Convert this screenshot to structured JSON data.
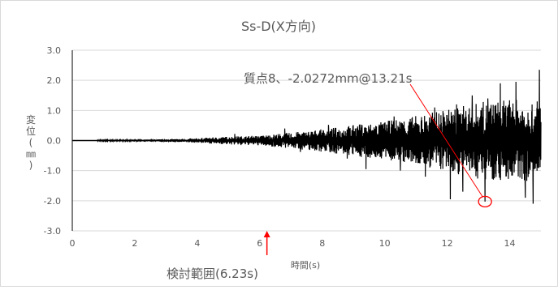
{
  "chart_data": {
    "type": "line",
    "title": "Ss-D(X方向)",
    "xlabel": "時間(s)",
    "ylabel": "変位(㎜)",
    "xlim": [
      0,
      15
    ],
    "ylim": [
      -3.0,
      3.0
    ],
    "x_ticks": [
      "0",
      "2",
      "4",
      "6",
      "8",
      "10",
      "12",
      "14"
    ],
    "y_ticks": [
      "3.0",
      "2.0",
      "1.0",
      "0.0",
      "-1.0",
      "-2.0",
      "-3.0"
    ],
    "grid": {
      "horizontal": true,
      "vertical": false
    },
    "legend": "none",
    "series": [
      {
        "color": "#000000",
        "envelope": [
          {
            "t": 0.8,
            "amp": 0.03
          },
          {
            "t": 2.0,
            "amp": 0.04
          },
          {
            "t": 3.0,
            "amp": 0.06
          },
          {
            "t": 4.0,
            "amp": 0.1
          },
          {
            "t": 5.0,
            "amp": 0.18
          },
          {
            "t": 6.0,
            "amp": 0.22
          },
          {
            "t": 7.0,
            "amp": 0.35
          },
          {
            "t": 8.0,
            "amp": 0.5
          },
          {
            "t": 9.0,
            "amp": 0.7
          },
          {
            "t": 10.0,
            "amp": 0.85
          },
          {
            "t": 11.0,
            "amp": 1.1
          },
          {
            "t": 12.0,
            "amp": 1.4
          },
          {
            "t": 13.0,
            "amp": 1.7
          },
          {
            "t": 14.0,
            "amp": 1.8
          },
          {
            "t": 15.0,
            "amp": 1.9
          }
        ],
        "peaks": [
          {
            "t": 5.2,
            "y": 0.22
          },
          {
            "t": 5.4,
            "y": -0.15
          },
          {
            "t": 6.8,
            "y": 0.4
          },
          {
            "t": 7.3,
            "y": -0.38
          },
          {
            "t": 8.2,
            "y": 0.52
          },
          {
            "t": 8.8,
            "y": -0.6
          },
          {
            "t": 9.4,
            "y": -0.95
          },
          {
            "t": 10.3,
            "y": 0.8
          },
          {
            "t": 10.5,
            "y": -1.0
          },
          {
            "t": 11.3,
            "y": -1.2
          },
          {
            "t": 11.6,
            "y": 1.1
          },
          {
            "t": 12.1,
            "y": -1.95
          },
          {
            "t": 12.3,
            "y": 1.2
          },
          {
            "t": 12.5,
            "y": -1.7
          },
          {
            "t": 12.8,
            "y": 1.5
          },
          {
            "t": 13.21,
            "y": -2.0272
          },
          {
            "t": 13.3,
            "y": 1.4
          },
          {
            "t": 13.7,
            "y": 1.9
          },
          {
            "t": 14.2,
            "y": 1.95
          },
          {
            "t": 14.5,
            "y": -1.9
          },
          {
            "t": 14.75,
            "y": -2.1
          },
          {
            "t": 14.95,
            "y": 2.35
          }
        ]
      }
    ],
    "annotations": {
      "peak": {
        "text": "質点8、-2.0272mm@13.21s",
        "t": 13.21,
        "y": -2.0272,
        "color": "#ff0000"
      },
      "range": {
        "text": "検討範囲(6.23s)",
        "t": 6.23,
        "color": "#ff0000"
      }
    }
  }
}
